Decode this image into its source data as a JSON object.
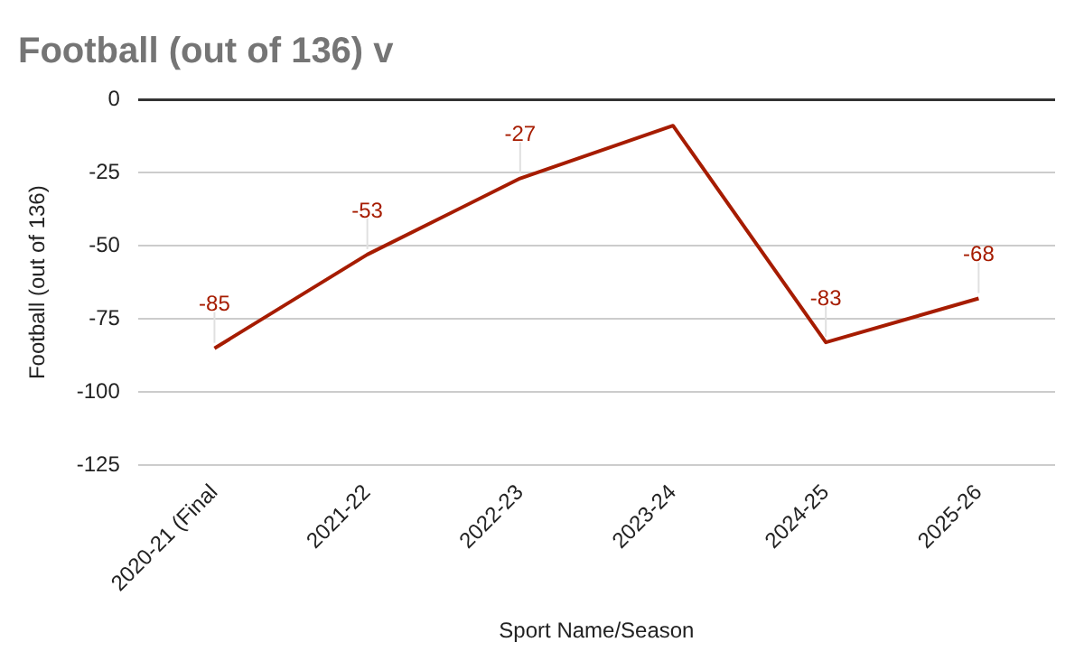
{
  "chart_data": {
    "type": "line",
    "title": "Football (out of 136) v",
    "xlabel": "Sport Name/Season",
    "ylabel": "Football (out of 136)",
    "categories": [
      "2020-21 (Final",
      "2021-22",
      "2022-23",
      "2023-24",
      "2024-25",
      "2025-26"
    ],
    "series": [
      {
        "color": "#a61c00",
        "values": [
          -85,
          -53,
          -27,
          -9,
          -83,
          -68
        ],
        "value_labels": [
          "-85",
          "-53",
          "-27",
          null,
          "-83",
          "-68"
        ]
      }
    ],
    "ylim": [
      -125,
      0
    ],
    "yticks": [
      -125,
      -100,
      -75,
      -50,
      -25,
      0
    ],
    "grid": "y",
    "legend": false,
    "marker": "none"
  }
}
